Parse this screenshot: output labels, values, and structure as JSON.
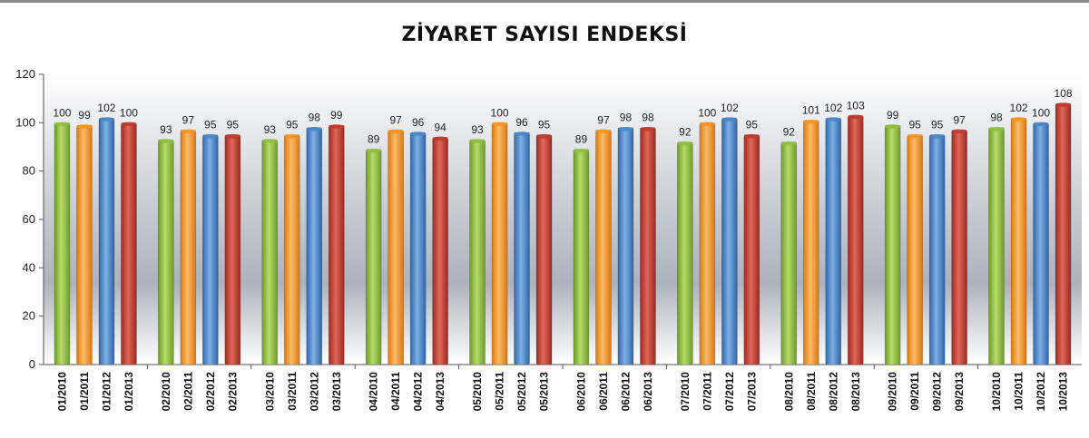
{
  "chart_data": {
    "type": "bar",
    "title": "ZİYARET SAYISI ENDEKSİ",
    "xlabel": "",
    "ylabel": "",
    "ylim": [
      0,
      120
    ],
    "yticks": [
      0,
      20,
      40,
      60,
      80,
      100,
      120
    ],
    "grid": false,
    "legend": "none",
    "groups": [
      {
        "bars": [
          {
            "label": "01/2010",
            "value": 100
          },
          {
            "label": "01/2011",
            "value": 99
          },
          {
            "label": "01/2012",
            "value": 102
          },
          {
            "label": "01/2013",
            "value": 100
          }
        ]
      },
      {
        "bars": [
          {
            "label": "02/2010",
            "value": 93
          },
          {
            "label": "02/2011",
            "value": 97
          },
          {
            "label": "02/2012",
            "value": 95
          },
          {
            "label": "02/2013",
            "value": 95
          }
        ]
      },
      {
        "bars": [
          {
            "label": "03/2010",
            "value": 93
          },
          {
            "label": "03/2011",
            "value": 95
          },
          {
            "label": "03/2012",
            "value": 98
          },
          {
            "label": "03/2013",
            "value": 99
          }
        ]
      },
      {
        "bars": [
          {
            "label": "04/2010",
            "value": 89
          },
          {
            "label": "04/2011",
            "value": 97
          },
          {
            "label": "04/2012",
            "value": 96
          },
          {
            "label": "04/2013",
            "value": 94
          }
        ]
      },
      {
        "bars": [
          {
            "label": "05/2010",
            "value": 93
          },
          {
            "label": "05/2011",
            "value": 100
          },
          {
            "label": "05/2012",
            "value": 96
          },
          {
            "label": "05/2013",
            "value": 95
          }
        ]
      },
      {
        "bars": [
          {
            "label": "06/2010",
            "value": 89
          },
          {
            "label": "06/2011",
            "value": 97
          },
          {
            "label": "06/2012",
            "value": 98
          },
          {
            "label": "06/2013",
            "value": 98
          }
        ]
      },
      {
        "bars": [
          {
            "label": "07/2010",
            "value": 92
          },
          {
            "label": "07/2011",
            "value": 100
          },
          {
            "label": "07/2012",
            "value": 102
          },
          {
            "label": "07/2013",
            "value": 95
          }
        ]
      },
      {
        "bars": [
          {
            "label": "08/2010",
            "value": 92
          },
          {
            "label": "08/2011",
            "value": 101
          },
          {
            "label": "08/2012",
            "value": 102
          },
          {
            "label": "08/2013",
            "value": 103
          }
        ]
      },
      {
        "bars": [
          {
            "label": "09/2010",
            "value": 99
          },
          {
            "label": "09/2011",
            "value": 95
          },
          {
            "label": "09/2012",
            "value": 95
          },
          {
            "label": "09/2013",
            "value": 97
          }
        ]
      },
      {
        "bars": [
          {
            "label": "10/2010",
            "value": 98
          },
          {
            "label": "10/2011",
            "value": 102
          },
          {
            "label": "10/2012",
            "value": 100
          },
          {
            "label": "10/2013",
            "value": 108
          }
        ]
      }
    ],
    "colors": [
      "#8fbf3f",
      "#f7941d",
      "#4a86c8",
      "#c0392b"
    ]
  }
}
